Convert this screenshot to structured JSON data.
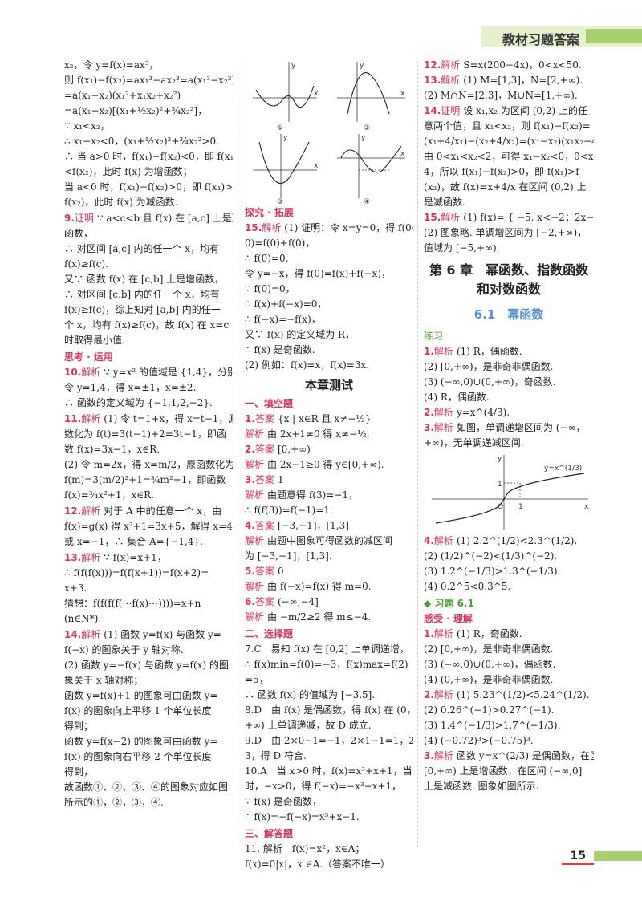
{
  "header": {
    "title": "教材习题答案"
  },
  "page_number": "15",
  "col1": {
    "lines": [
      "x₂，令 y=f(x)=ax³，",
      "则 f(x₁)−f(x₂)=ax₁³−ax₂³=a(x₁³−x₂³)",
      "=a(x₁−x₂)(x₁²+x₁x₂+x₂²)",
      "=a(x₁−x₂)[(x₁+½x₂)²+¾x₂²]，",
      "∵ x₁<x₂，",
      "∴ x₁−x₂<0，(x₁+½x₂)²+¾x₂²>0.",
      "∴ 当 a>0 时，f(x₁)−f(x₂)<0，即 f(x₁)",
      "<f(x₂)，此时 f(x) 为增函数；",
      "当 a<0 时，f(x₁)−f(x₂)>0，即 f(x₁)>",
      "f(x₂)，此时 f(x) 为减函数."
    ],
    "q9": {
      "num": "9.",
      "tag": "证明",
      "lines": [
        "∵ a<c<b 且 f(x) 在 [a,c] 上是减",
        "函数，",
        "∴ 对区间 [a,c] 内的任一个 x，均有",
        "f(x)≥f(c).",
        "又∵ 函数 f(x) 在 [c,b] 上是增函数，",
        "∴ 对区间 [c,b] 内的任一个 x，均有",
        "f(x)≥f(c)，综上知对 [a,b] 内的任一",
        "个 x，均有 f(x)≥f(c)，故 f(x) 在 x=c",
        "时取得最小值."
      ]
    },
    "section": "思考 · 运用",
    "q10": {
      "num": "10.",
      "tag": "解析",
      "lines": [
        "∵ y=x² 的值域是 {1,4}，分别",
        "令 y=1,4，得 x=±1，x=±2.",
        "∴ 函数的定义域为 {−1,1,2,−2}."
      ]
    },
    "q11": {
      "num": "11.",
      "tag": "解析",
      "lines": [
        "(1) 令 t=1+x，得 x=t−1，原函",
        "数化为 f(t)=3(t−1)+2=3t−1，即函",
        "数 f(x)=3x−1，x∈R.",
        "(2) 令 m=2x，得 x=m/2，原函数化为",
        "f(m)=3(m/2)²+1=¾m²+1，即函数",
        "f(x)=¾x²+1，x∈R."
      ]
    },
    "q12": {
      "num": "12.",
      "tag": "解析",
      "lines": [
        "对于 A 中的任意一个 x，由",
        "f(x)=g(x) 得 x²+1=3x+5，解得 x=4",
        "或 x=−1，∴ 集合 A={−1,4}."
      ]
    },
    "q13": {
      "num": "13.",
      "tag": "解析",
      "lines": [
        "∵ f(x)=x+1，",
        "∴ f(f(f(x)))=f(f(x+1))=f(x+2)=",
        "x+3.",
        "猜想：f(f(f(f(⋯f(x)⋯))))=x+n",
        "(n∈N*)."
      ]
    },
    "q14": {
      "num": "14.",
      "tag": "解析",
      "lines": [
        "(1) 函数 y=f(x) 与函数 y=",
        "f(−x) 的图象关于 y 轴对称.",
        "(2) 函数 y=−f(x) 与函数 y=f(x) 的图",
        "象关于 x 轴对称；",
        "函数 y=f(x)+1 的图象可由函数 y=",
        "f(x) 的图象向上平移 1 个单位长度",
        "得到；",
        "函数 y=f(x−2) 的图象可由函数 y=",
        "f(x) 的图象向右平移 2 个单位长度",
        "得到，",
        "故函数①、②、③、④的图象对应如图",
        "所示的①，②，③，④."
      ]
    }
  },
  "col2": {
    "graphs": {
      "labels": [
        "①",
        "②",
        "③",
        "④"
      ],
      "tick_labels": [
        "-2",
        "-1",
        "O",
        "1",
        "2",
        "-1",
        "-2"
      ],
      "axis_x": "x",
      "axis_y": "y"
    },
    "section_explore": "探究 · 拓展",
    "q15": {
      "num": "15.",
      "tag": "解析",
      "lines": [
        "(1) 证明：令 x=y=0，得 f(0+",
        "0)=f(0)+f(0)，",
        "∴ f(0)=0.",
        "令 y=−x，得 f(0)=f(x)+f(−x)，",
        "∵ f(0)=0，",
        "∴ f(x)+f(−x)=0，",
        "∴ f(−x)=−f(x)，",
        "又∵ f(x) 的定义域为 R，",
        "∴ f(x) 是奇函数.",
        "(2) 例如：f(x)=x，f(x)=3x."
      ]
    },
    "chapter_test_title": "本章测试",
    "fill_section": "一、填空题",
    "fill": [
      {
        "num": "1.",
        "tag": "答案",
        "text": "{x | x∈R 且 x≠−½}"
      },
      {
        "num": "",
        "tag": "解析",
        "text": "由 2x+1≠0 得 x≠−½."
      },
      {
        "num": "2.",
        "tag": "答案",
        "text": "[0,+∞)"
      },
      {
        "num": "",
        "tag": "解析",
        "text": "由 2x−1≥0 得 y∈[0,+∞)."
      },
      {
        "num": "3.",
        "tag": "答案",
        "text": "1"
      },
      {
        "num": "",
        "tag": "解析",
        "text": "由题意得 f(3)=−1，"
      },
      {
        "num": "",
        "tag": "",
        "text": "∴ f(f(3))=f(−1)=1."
      },
      {
        "num": "4.",
        "tag": "答案",
        "text": "[−3,−1]，[1,3]"
      },
      {
        "num": "",
        "tag": "解析",
        "text": "由题中图象可得函数的减区间"
      },
      {
        "num": "",
        "tag": "",
        "text": "为 [−3,−1]，[1,3]."
      },
      {
        "num": "5.",
        "tag": "答案",
        "text": "0"
      },
      {
        "num": "",
        "tag": "解析",
        "text": "由 f(−x)=f(x) 得 m=0."
      },
      {
        "num": "6.",
        "tag": "答案",
        "text": "(−∞,−4]"
      },
      {
        "num": "",
        "tag": "解析",
        "text": "由 −m/2≥2 得 m≤−4."
      }
    ],
    "choice_section": "二、选择题",
    "choice": [
      "7.C　易知 f(x) 在 [0,2] 上单调递增，",
      "∴ f(x)min=f(0)=−3，f(x)max=f(2)",
      "=5，",
      "∴ 函数 f(x) 的值域为 [−3,5].",
      "8.D　由 f(x) 是偶函数，得 f(x) 在 (0，",
      "+∞) 上单调递减，故 D 成立.",
      "9.D　由 2×0−1=−1，2×1−1=1，2×2−1=",
      "3，得 D 符合.",
      "10.A　当 x>0 时，f(x)=x³+x+1，当 x<0",
      "时，−x>0，得 f(−x)=−x³−x+1，",
      "∵ f(x) 是奇函数，",
      "∴ f(x)=−f(−x)=x³+x−1."
    ],
    "answer_section": "三、解答题",
    "q11": "11. 解析　f(x)=x²，x∈A；f(x)=0|x|，x ∈A.（答案不唯一）"
  },
  "col3": {
    "top": [
      {
        "num": "12.",
        "tag": "解析",
        "text": "S=x(200−4x)，0<x<50."
      },
      {
        "num": "13.",
        "tag": "解析",
        "text": "(1) M=[1,3]，N=[2,+∞)."
      },
      {
        "num": "",
        "tag": "",
        "text": "(2) M∩N=[2,3]，M∪N=[1,+∞)."
      },
      {
        "num": "14.",
        "tag": "证明",
        "text": "设 x₁,x₂ 为区间 (0,2) 上的任"
      },
      {
        "num": "",
        "tag": "",
        "text": "意两个值，且 x₁<x₂，则 f(x₁)−f(x₂)="
      },
      {
        "num": "",
        "tag": "",
        "text": "(x₁+4/x₁)−(x₂+4/x₂)=(x₁−x₂)(x₁x₂−4)/(x₁x₂)."
      },
      {
        "num": "",
        "tag": "",
        "text": "由 0<x₁<x₂<2，可得 x₁−x₂<0，0<x₁x₂<"
      },
      {
        "num": "",
        "tag": "",
        "text": "4，所以 f(x₁)−f(x₂)>0，即 f(x₁)>f"
      },
      {
        "num": "",
        "tag": "",
        "text": "(x₂)，故 f(x)=x+4/x 在区间 (0,2) 上"
      },
      {
        "num": "",
        "tag": "",
        "text": "是减函数."
      },
      {
        "num": "15.",
        "tag": "解析",
        "text": "(1) f(x)= { −5, x<−2；2x−1, x≥−2."
      },
      {
        "num": "",
        "tag": "",
        "text": "(2) 图象略. 单调增区间为 [−2,+∞)，"
      },
      {
        "num": "",
        "tag": "",
        "text": "值域为 [−5,+∞)."
      }
    ],
    "chapter_line1": "第 6 章　幂函数、指数函数",
    "chapter_line2": "和对数函数",
    "section_title": "6.1　幂函数",
    "practice_label": "练习",
    "practice": [
      {
        "num": "1.",
        "tag": "解析",
        "text": "(1) R，偶函数."
      },
      {
        "num": "",
        "tag": "",
        "text": "(2) [0,+∞)，是非奇非偶函数."
      },
      {
        "num": "",
        "tag": "",
        "text": "(3) (−∞,0)∪(0,+∞)，奇函数."
      },
      {
        "num": "",
        "tag": "",
        "text": "(4) R，偶函数."
      },
      {
        "num": "2.",
        "tag": "解析",
        "text": "y=x^(4/3)."
      },
      {
        "num": "3.",
        "tag": "解析",
        "text": "如图，单调递增区间为 (−∞，"
      },
      {
        "num": "",
        "tag": "",
        "text": "+∞)，无单调递减区间."
      }
    ],
    "graph": {
      "curve_label": "y=x^(1/3)",
      "axis_x": "x",
      "axis_y": "y",
      "tick_1": "1",
      "origin": "O"
    },
    "after_graph": [
      {
        "num": "4.",
        "tag": "解析",
        "text": "(1) 2.2^(1/2)<2.3^(1/2)."
      },
      {
        "num": "",
        "tag": "",
        "text": "(2) (1/2)^(−2)<(1/3)^(−2)."
      },
      {
        "num": "",
        "tag": "",
        "text": "(3) 1.2^(−1/3)>1.3^(−1/3)."
      },
      {
        "num": "",
        "tag": "",
        "text": "(4) 0.2^5<0.3^5."
      }
    ],
    "xiti": "◆ 习题 6.1",
    "ganshou": "感受 · 理解",
    "exercises": [
      {
        "num": "1.",
        "tag": "解析",
        "text": "(1) R，奇函数."
      },
      {
        "num": "",
        "tag": "",
        "text": "(2) [0,+∞)，是非奇非偶函数."
      },
      {
        "num": "",
        "tag": "",
        "text": "(3) (−∞,0)∪(0,+∞)，偶函数."
      },
      {
        "num": "",
        "tag": "",
        "text": "(4) (0,+∞)，是非奇非偶函数."
      },
      {
        "num": "2.",
        "tag": "解析",
        "text": "(1) 5.23^(1/2)<5.24^(1/2)."
      },
      {
        "num": "",
        "tag": "",
        "text": "(2) 0.26^(−1)>0.27^(−1)."
      },
      {
        "num": "",
        "tag": "",
        "text": "(3) 1.4^(−1/3)>1.7^(−1/3)."
      },
      {
        "num": "",
        "tag": "",
        "text": "(4) (−0.72)³>(−0.75)³."
      },
      {
        "num": "3.",
        "tag": "解析",
        "text": "函数 y=x^(2/3) 是偶函数，在区间"
      },
      {
        "num": "",
        "tag": "",
        "text": "[0,+∞) 上是增函数，在区间 (−∞,0]"
      },
      {
        "num": "",
        "tag": "",
        "text": "上是减函数. 图象如图所示."
      }
    ]
  }
}
